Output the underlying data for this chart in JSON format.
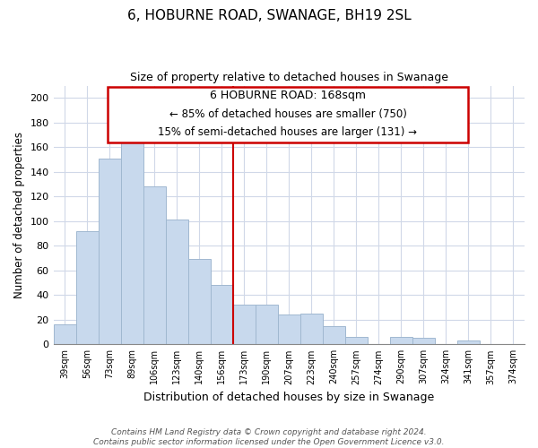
{
  "title": "6, HOBURNE ROAD, SWANAGE, BH19 2SL",
  "subtitle": "Size of property relative to detached houses in Swanage",
  "xlabel": "Distribution of detached houses by size in Swanage",
  "ylabel": "Number of detached properties",
  "bar_labels": [
    "39sqm",
    "56sqm",
    "73sqm",
    "89sqm",
    "106sqm",
    "123sqm",
    "140sqm",
    "156sqm",
    "173sqm",
    "190sqm",
    "207sqm",
    "223sqm",
    "240sqm",
    "257sqm",
    "274sqm",
    "290sqm",
    "307sqm",
    "324sqm",
    "341sqm",
    "357sqm",
    "374sqm"
  ],
  "bar_values": [
    16,
    92,
    151,
    165,
    128,
    101,
    69,
    48,
    32,
    32,
    24,
    25,
    15,
    6,
    0,
    6,
    5,
    0,
    3,
    0,
    0
  ],
  "bar_color": "#c8d9ed",
  "bar_edge_color": "#a0b8d0",
  "ylim": [
    0,
    210
  ],
  "yticks": [
    0,
    20,
    40,
    60,
    80,
    100,
    120,
    140,
    160,
    180,
    200
  ],
  "vline_index": 8,
  "vline_color": "#cc0000",
  "annotation_title": "6 HOBURNE ROAD: 168sqm",
  "annotation_line1": "← 85% of detached houses are smaller (750)",
  "annotation_line2": "15% of semi-detached houses are larger (131) →",
  "annotation_box_color": "#ffffff",
  "annotation_box_edge": "#cc0000",
  "footer_line1": "Contains HM Land Registry data © Crown copyright and database right 2024.",
  "footer_line2": "Contains public sector information licensed under the Open Government Licence v3.0.",
  "background_color": "#ffffff",
  "grid_color": "#d0d8e8"
}
